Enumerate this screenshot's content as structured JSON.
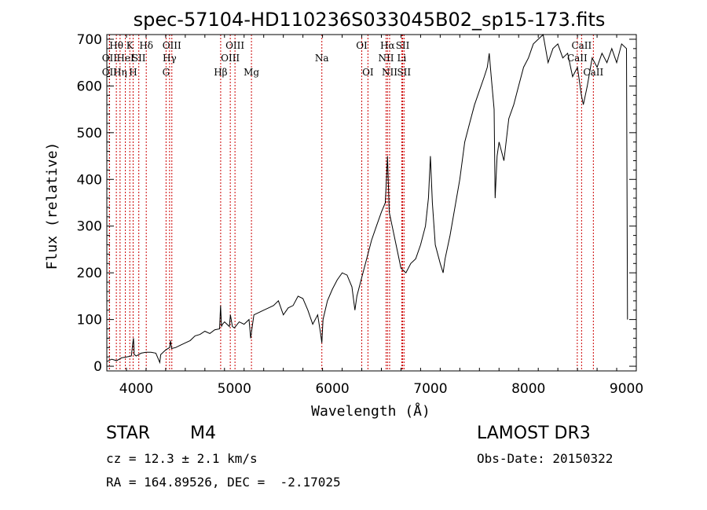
{
  "chart_data": {
    "type": "line",
    "title": "spec-57104-HD110236S033045B02_sp15-173.fits",
    "xlabel": "Wavelength (Å)",
    "ylabel": "Flux (relative)",
    "xlim": [
      3700,
      9100
    ],
    "ylim": [
      -10,
      710
    ],
    "xticks": [
      4000,
      5000,
      6000,
      7000,
      8000,
      9000
    ],
    "yticks": [
      0,
      100,
      200,
      300,
      400,
      500,
      600,
      700
    ],
    "grid": false,
    "colors": {
      "spectrum": "#000000",
      "lines": "#cc0000",
      "axes": "#000000"
    },
    "series": [
      {
        "name": "spectrum",
        "x": [
          3700,
          3750,
          3800,
          3850,
          3900,
          3950,
          3965,
          3972,
          3980,
          4000,
          4050,
          4100,
          4150,
          4200,
          4240,
          4250,
          4300,
          4340,
          4350,
          4360,
          4400,
          4450,
          4500,
          4550,
          4600,
          4650,
          4700,
          4750,
          4800,
          4850,
          4860,
          4870,
          4880,
          4900,
          4950,
          4960,
          4980,
          5000,
          5050,
          5100,
          5150,
          5167,
          5183,
          5200,
          5250,
          5300,
          5350,
          5400,
          5450,
          5500,
          5550,
          5600,
          5650,
          5700,
          5750,
          5800,
          5850,
          5880,
          5893,
          5905,
          5950,
          6000,
          6050,
          6100,
          6150,
          6200,
          6230,
          6250,
          6300,
          6350,
          6400,
          6450,
          6500,
          6540,
          6563,
          6580,
          6600,
          6650,
          6700,
          6750,
          6800,
          6850,
          6900,
          6950,
          6980,
          7000,
          7020,
          7050,
          7100,
          7130,
          7150,
          7200,
          7250,
          7300,
          7350,
          7400,
          7450,
          7500,
          7550,
          7580,
          7600,
          7620,
          7650,
          7660,
          7680,
          7700,
          7750,
          7800,
          7850,
          7900,
          7950,
          8000,
          8050,
          8100,
          8150,
          8200,
          8250,
          8300,
          8350,
          8400,
          8450,
          8500,
          8540,
          8560,
          8580,
          8600,
          8650,
          8700,
          8750,
          8800,
          8850,
          8900,
          8950,
          9000,
          9010
        ],
        "y": [
          10,
          15,
          12,
          18,
          20,
          22,
          50,
          60,
          25,
          22,
          28,
          30,
          30,
          28,
          8,
          25,
          35,
          40,
          55,
          38,
          40,
          45,
          50,
          55,
          65,
          68,
          75,
          70,
          78,
          80,
          130,
          85,
          90,
          95,
          85,
          110,
          85,
          82,
          95,
          90,
          100,
          60,
          85,
          110,
          115,
          120,
          125,
          130,
          140,
          110,
          125,
          130,
          150,
          145,
          120,
          90,
          110,
          70,
          50,
          100,
          140,
          165,
          185,
          200,
          195,
          170,
          120,
          150,
          190,
          230,
          270,
          300,
          330,
          350,
          450,
          330,
          310,
          260,
          210,
          200,
          220,
          230,
          260,
          300,
          360,
          450,
          350,
          260,
          220,
          200,
          230,
          280,
          340,
          400,
          480,
          520,
          560,
          590,
          620,
          640,
          670,
          620,
          550,
          360,
          450,
          480,
          440,
          530,
          560,
          600,
          640,
          660,
          690,
          700,
          710,
          650,
          680,
          690,
          660,
          670,
          620,
          640,
          580,
          560,
          580,
          600,
          660,
          640,
          670,
          650,
          680,
          650,
          690,
          680,
          100
        ]
      }
    ],
    "reference_lines": [
      {
        "x": 3727,
        "label": "OII",
        "row": 2
      },
      {
        "x": 3727,
        "label": "OII",
        "row": 3
      },
      {
        "x": 3797,
        "label": "Hθ",
        "row": 1
      },
      {
        "x": 3835,
        "label": "Hη",
        "row": 3
      },
      {
        "x": 3889,
        "label": "HeI",
        "row": 2
      },
      {
        "x": 3934,
        "label": "K",
        "row": 1
      },
      {
        "x": 3968,
        "label": "H",
        "row": 3
      },
      {
        "x": 4026,
        "label": "SII",
        "row": 2
      },
      {
        "x": 4102,
        "label": "Hδ",
        "row": 1
      },
      {
        "x": 4304,
        "label": "G",
        "row": 3
      },
      {
        "x": 4340,
        "label": "Hγ",
        "row": 2
      },
      {
        "x": 4363,
        "label": "OIII",
        "row": 1
      },
      {
        "x": 4861,
        "label": "Hβ",
        "row": 3
      },
      {
        "x": 4959,
        "label": "OIII",
        "row": 2
      },
      {
        "x": 5007,
        "label": "OIII",
        "row": 1
      },
      {
        "x": 5175,
        "label": "Mg",
        "row": 3
      },
      {
        "x": 5893,
        "label": "Na",
        "row": 2
      },
      {
        "x": 6300,
        "label": "OI",
        "row": 1
      },
      {
        "x": 6363,
        "label": "OI",
        "row": 3
      },
      {
        "x": 6548,
        "label": "NII",
        "row": 2
      },
      {
        "x": 6563,
        "label": "Hα",
        "row": 1
      },
      {
        "x": 6584,
        "label": "NII",
        "row": 3
      },
      {
        "x": 6708,
        "label": "Li",
        "row": 2
      },
      {
        "x": 6717,
        "label": "SII",
        "row": 1
      },
      {
        "x": 6731,
        "label": "SII",
        "row": 3
      },
      {
        "x": 8498,
        "label": "CaII",
        "row": 2
      },
      {
        "x": 8542,
        "label": "CaII",
        "row": 1
      },
      {
        "x": 8662,
        "label": "CaII",
        "row": 3
      }
    ]
  },
  "info": {
    "class": "STAR",
    "subclass": "M4",
    "survey": "LAMOST DR3",
    "cz": "cz = 12.3 ± 2.1 km/s",
    "obs_date": "Obs-Date: 20150322",
    "coords": "RA = 164.89526, DEC =  -2.17025"
  }
}
